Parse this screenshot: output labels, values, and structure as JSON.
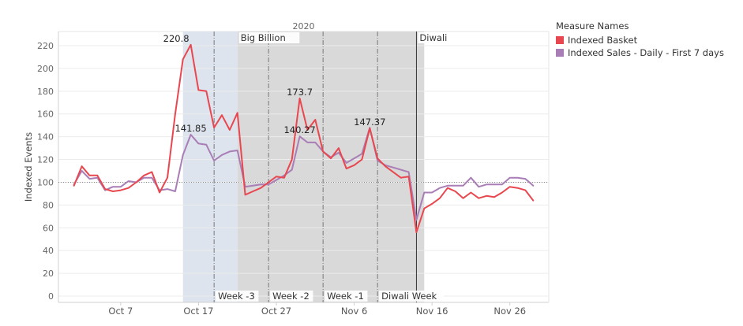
{
  "chart_data": {
    "type": "line",
    "header": "2020",
    "ylabel": "Indexed Events",
    "ylim": [
      0,
      230
    ],
    "yticks": [
      0,
      20,
      40,
      60,
      80,
      100,
      120,
      140,
      160,
      180,
      200,
      220
    ],
    "reference_line": 100,
    "date_start": "2020-09-29",
    "date_end": "2020-12-01",
    "xticks": [
      {
        "label": "Oct 7",
        "date": "2020-10-07"
      },
      {
        "label": "Oct 17",
        "date": "2020-10-17"
      },
      {
        "label": "Oct 27",
        "date": "2020-10-27"
      },
      {
        "label": "Nov 6",
        "date": "2020-11-06"
      },
      {
        "label": "Nov 16",
        "date": "2020-11-16"
      },
      {
        "label": "Nov 26",
        "date": "2020-11-26"
      }
    ],
    "bands": [
      {
        "start": "2020-10-15",
        "end": "2020-10-22",
        "color": "#dde4ee"
      },
      {
        "start": "2020-10-22",
        "end": "2020-11-15",
        "color": "#d9d9d9"
      }
    ],
    "vlines": [
      {
        "date": "2020-10-19",
        "style": "dashdot"
      },
      {
        "date": "2020-10-26",
        "style": "dashdot"
      },
      {
        "date": "2020-11-02",
        "style": "dashdot"
      },
      {
        "date": "2020-11-09",
        "style": "dashdot"
      },
      {
        "date": "2020-11-14",
        "style": "solid"
      }
    ],
    "top_annotations": [
      {
        "label": "Big Billion",
        "date": "2020-10-22"
      },
      {
        "label": "Diwali",
        "date": "2020-11-14"
      }
    ],
    "bottom_annotations": [
      {
        "label": "Week -3",
        "date": "2020-10-19"
      },
      {
        "label": "Week -2",
        "date": "2020-10-26"
      },
      {
        "label": "Week -1",
        "date": "2020-11-02"
      },
      {
        "label": "Diwali Week",
        "date": "2020-11-09"
      }
    ],
    "legend_title": "Measure Names",
    "series": [
      {
        "name": "Indexed Basket",
        "color": "#e8474f",
        "points": [
          [
            "2020-10-01",
            97
          ],
          [
            "2020-10-02",
            114
          ],
          [
            "2020-10-03",
            106
          ],
          [
            "2020-10-04",
            106
          ],
          [
            "2020-10-05",
            94
          ],
          [
            "2020-10-06",
            92
          ],
          [
            "2020-10-07",
            93
          ],
          [
            "2020-10-08",
            95
          ],
          [
            "2020-10-09",
            100
          ],
          [
            "2020-10-10",
            106
          ],
          [
            "2020-10-11",
            109
          ],
          [
            "2020-10-12",
            91
          ],
          [
            "2020-10-13",
            104
          ],
          [
            "2020-10-14",
            160
          ],
          [
            "2020-10-15",
            208
          ],
          [
            "2020-10-16",
            220.8
          ],
          [
            "2020-10-17",
            181
          ],
          [
            "2020-10-18",
            180
          ],
          [
            "2020-10-19",
            148
          ],
          [
            "2020-10-20",
            159
          ],
          [
            "2020-10-21",
            146
          ],
          [
            "2020-10-22",
            161
          ],
          [
            "2020-10-23",
            89
          ],
          [
            "2020-10-24",
            92
          ],
          [
            "2020-10-25",
            95
          ],
          [
            "2020-10-26",
            100
          ],
          [
            "2020-10-27",
            105
          ],
          [
            "2020-10-28",
            104
          ],
          [
            "2020-10-29",
            120
          ],
          [
            "2020-10-30",
            173.7
          ],
          [
            "2020-10-31",
            146
          ],
          [
            "2020-11-01",
            155
          ],
          [
            "2020-11-02",
            127
          ],
          [
            "2020-11-03",
            121
          ],
          [
            "2020-11-04",
            130
          ],
          [
            "2020-11-05",
            112
          ],
          [
            "2020-11-06",
            115
          ],
          [
            "2020-11-07",
            120
          ],
          [
            "2020-11-08",
            147.37
          ],
          [
            "2020-11-09",
            121
          ],
          [
            "2020-11-10",
            114
          ],
          [
            "2020-11-11",
            109
          ],
          [
            "2020-11-12",
            104
          ],
          [
            "2020-11-13",
            105
          ],
          [
            "2020-11-14",
            56
          ],
          [
            "2020-11-15",
            77
          ],
          [
            "2020-11-16",
            81
          ],
          [
            "2020-11-17",
            86
          ],
          [
            "2020-11-18",
            95
          ],
          [
            "2020-11-19",
            92
          ],
          [
            "2020-11-20",
            86
          ],
          [
            "2020-11-21",
            91
          ],
          [
            "2020-11-22",
            86
          ],
          [
            "2020-11-23",
            88
          ],
          [
            "2020-11-24",
            87
          ],
          [
            "2020-11-25",
            91
          ],
          [
            "2020-11-26",
            96
          ],
          [
            "2020-11-27",
            95
          ],
          [
            "2020-11-28",
            93
          ],
          [
            "2020-11-29",
            84
          ]
        ]
      },
      {
        "name": "Indexed Sales - Daily - First 7 days",
        "color": "#a97db5",
        "points": [
          [
            "2020-10-01",
            98
          ],
          [
            "2020-10-02",
            110
          ],
          [
            "2020-10-03",
            103
          ],
          [
            "2020-10-04",
            104
          ],
          [
            "2020-10-05",
            93
          ],
          [
            "2020-10-06",
            96
          ],
          [
            "2020-10-07",
            96
          ],
          [
            "2020-10-08",
            101
          ],
          [
            "2020-10-09",
            100
          ],
          [
            "2020-10-10",
            104
          ],
          [
            "2020-10-11",
            104
          ],
          [
            "2020-10-12",
            93
          ],
          [
            "2020-10-13",
            94
          ],
          [
            "2020-10-14",
            92
          ],
          [
            "2020-10-15",
            124
          ],
          [
            "2020-10-16",
            141.85
          ],
          [
            "2020-10-17",
            134
          ],
          [
            "2020-10-18",
            133
          ],
          [
            "2020-10-19",
            119
          ],
          [
            "2020-10-20",
            124
          ],
          [
            "2020-10-21",
            127
          ],
          [
            "2020-10-22",
            128
          ],
          [
            "2020-10-23",
            96
          ],
          [
            "2020-10-24",
            97
          ],
          [
            "2020-10-25",
            98
          ],
          [
            "2020-10-26",
            98
          ],
          [
            "2020-10-27",
            102
          ],
          [
            "2020-10-28",
            106
          ],
          [
            "2020-10-29",
            111
          ],
          [
            "2020-10-30",
            140.27
          ],
          [
            "2020-10-31",
            135
          ],
          [
            "2020-11-01",
            135
          ],
          [
            "2020-11-02",
            127
          ],
          [
            "2020-11-03",
            122
          ],
          [
            "2020-11-04",
            126
          ],
          [
            "2020-11-05",
            117
          ],
          [
            "2020-11-06",
            121
          ],
          [
            "2020-11-07",
            125
          ],
          [
            "2020-11-08",
            148
          ],
          [
            "2020-11-09",
            119
          ],
          [
            "2020-11-10",
            115
          ],
          [
            "2020-11-11",
            113
          ],
          [
            "2020-11-12",
            111
          ],
          [
            "2020-11-13",
            109
          ],
          [
            "2020-11-14",
            67
          ],
          [
            "2020-11-15",
            91
          ],
          [
            "2020-11-16",
            91
          ],
          [
            "2020-11-17",
            95
          ],
          [
            "2020-11-18",
            97
          ],
          [
            "2020-11-19",
            97
          ],
          [
            "2020-11-20",
            97
          ],
          [
            "2020-11-21",
            104
          ],
          [
            "2020-11-22",
            96
          ],
          [
            "2020-11-23",
            98
          ],
          [
            "2020-11-24",
            98
          ],
          [
            "2020-11-25",
            98
          ],
          [
            "2020-11-26",
            104
          ],
          [
            "2020-11-27",
            104
          ],
          [
            "2020-11-28",
            103
          ],
          [
            "2020-11-29",
            97
          ]
        ]
      }
    ],
    "data_labels": [
      {
        "series": 0,
        "date": "2020-10-16",
        "value": 220.8,
        "text": "220.8",
        "anchor": "end"
      },
      {
        "series": 1,
        "date": "2020-10-16",
        "value": 141.85,
        "text": "141.85",
        "anchor": "middle"
      },
      {
        "series": 0,
        "date": "2020-10-30",
        "value": 173.7,
        "text": "173.7",
        "anchor": "middle"
      },
      {
        "series": 1,
        "date": "2020-10-30",
        "value": 140.27,
        "text": "140.27",
        "anchor": "middle"
      },
      {
        "series": 0,
        "date": "2020-11-08",
        "value": 147.37,
        "text": "147.37",
        "anchor": "middle"
      }
    ]
  }
}
